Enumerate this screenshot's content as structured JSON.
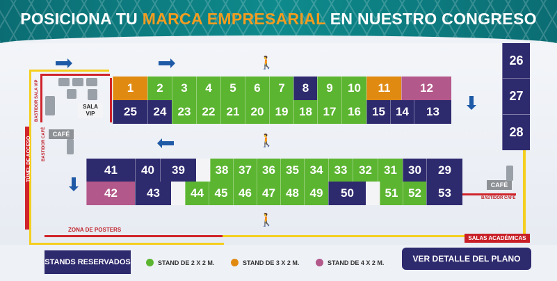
{
  "header": {
    "title_pre": "POSICIONA TU ",
    "title_highlight": "MARCA EMPRESARIAL",
    "title_post": " EN NUESTRO CONGRESO"
  },
  "labels": {
    "sala_vip": "SALA VIP",
    "cafe_left": "CAFÉ",
    "cafe_right": "CAFÉ",
    "bastidor_sala_vip": "BASTIDOR SALA VIP",
    "bastidor_cafe_left": "BASTIDOR CAFÉ",
    "tunel_de_acceso": "TÚNEL DE ACCESO",
    "bastidor_cafe_right": "BASTIDOR CAFÉ",
    "zona_de_posters": "ZONA DE POSTERS",
    "salas_academicas": "SALAS ACADÉMICAS"
  },
  "stands": {
    "row1": [
      "1",
      "2",
      "3",
      "4",
      "5",
      "6",
      "7",
      "8",
      "9",
      "10",
      "11",
      "12"
    ],
    "row2": [
      "25",
      "24",
      "23",
      "22",
      "21",
      "20",
      "19",
      "18",
      "17",
      "16",
      "15",
      "14",
      "13"
    ],
    "row3": [
      "41",
      "40",
      "39",
      "38",
      "37",
      "36",
      "35",
      "34",
      "33",
      "32",
      "31",
      "30",
      "29"
    ],
    "row4": [
      "42",
      "43",
      "44",
      "45",
      "46",
      "47",
      "48",
      "49",
      "50",
      "51",
      "52",
      "53"
    ],
    "right": [
      "26",
      "27",
      "28"
    ]
  },
  "legend": {
    "reserved": "STANDS RESERVADOS",
    "s2x2": "STAND DE 2 X 2 M.",
    "s3x2": "STAND DE 3 X 2 M.",
    "s4x2": "STAND DE 4 X 2 M."
  },
  "cta": {
    "label": "VER DETALLE DEL PLANO"
  },
  "colors": {
    "green": "#5cb531",
    "navy": "#2e2a6e",
    "orange": "#e08a12",
    "pink": "#b3588a",
    "teal": "#0e8a8c"
  }
}
